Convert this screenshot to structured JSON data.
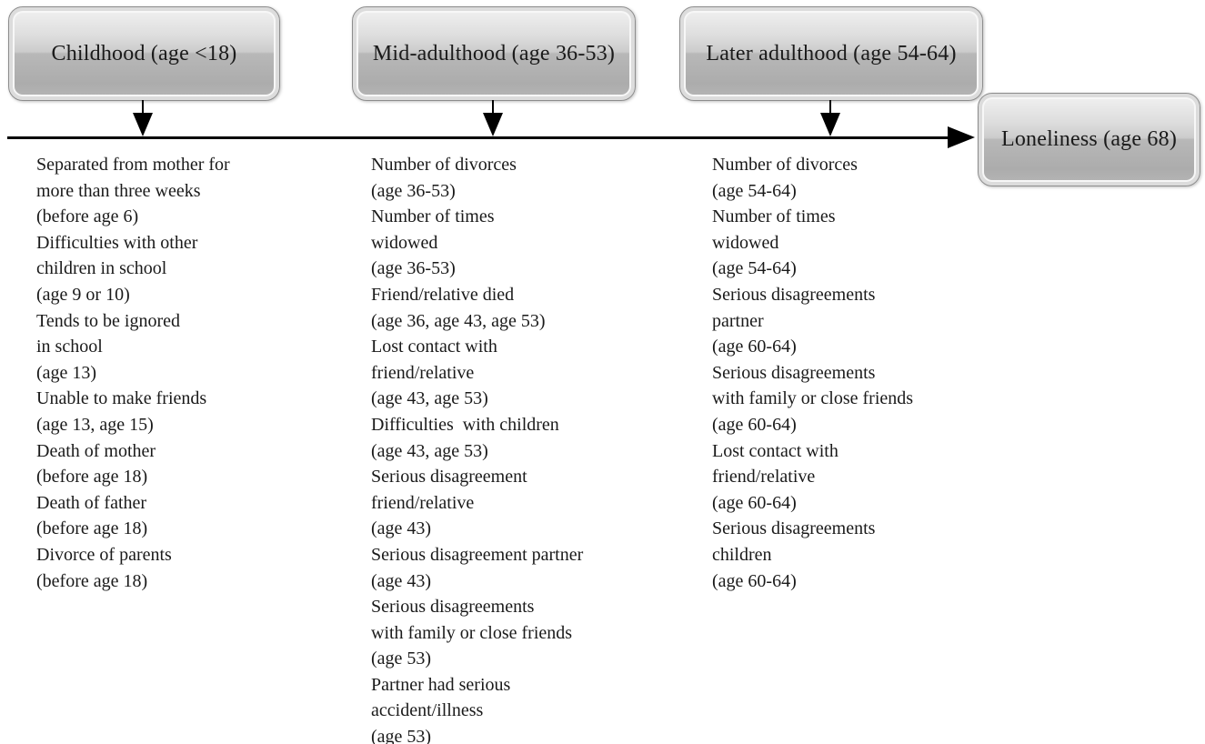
{
  "figure": {
    "stages": [
      {
        "id": "childhood",
        "label": "Childhood (age <18)"
      },
      {
        "id": "mid-adulthood",
        "label": "Mid-adulthood (age 36-53)"
      },
      {
        "id": "later-adulthood",
        "label": "Later adulthood (age 54-64)"
      }
    ],
    "outcome": {
      "label": "Loneliness (age 68)"
    },
    "columns": [
      {
        "stage": "childhood",
        "events": [
          {
            "lines": [
              "Separated from mother for",
              "more than three weeks",
              "(before age 6)"
            ]
          },
          {
            "lines": [
              "Difficulties with other",
              "children in school",
              "(age 9 or 10)"
            ]
          },
          {
            "lines": [
              "Tends to be ignored",
              "in school",
              "(age 13)"
            ]
          },
          {
            "lines": [
              "Unable to make friends",
              "(age 13, age 15)"
            ]
          },
          {
            "lines": [
              "Death of mother",
              "(before age 18)"
            ]
          },
          {
            "lines": [
              "Death of father",
              "(before age 18)"
            ]
          },
          {
            "lines": [
              "Divorce of parents",
              "(before age 18)"
            ]
          }
        ]
      },
      {
        "stage": "mid-adulthood",
        "events": [
          {
            "lines": [
              "Number of divorces",
              "(age 36-53)"
            ]
          },
          {
            "lines": [
              "Number of times",
              "widowed",
              "(age 36-53)"
            ]
          },
          {
            "lines": [
              "Friend/relative died",
              "(age 36, age 43, age 53)"
            ]
          },
          {
            "lines": [
              "Lost contact with",
              "friend/relative",
              "(age 43, age 53)"
            ]
          },
          {
            "lines": [
              "Difficulties  with children",
              "(age 43, age 53)"
            ]
          },
          {
            "lines": [
              "Serious disagreement",
              "friend/relative",
              "(age 43)"
            ]
          },
          {
            "lines": [
              "Serious disagreement partner",
              "(age 43)"
            ]
          },
          {
            "lines": [
              "Serious disagreements",
              "with family or close friends",
              "(age 53)"
            ]
          },
          {
            "lines": [
              "Partner had serious",
              "accident/illness",
              "(age 53)"
            ]
          }
        ]
      },
      {
        "stage": "later-adulthood",
        "events": [
          {
            "lines": [
              "Number of divorces",
              "(age 54-64)"
            ]
          },
          {
            "lines": [
              "Number of times",
              "widowed",
              "(age 54-64)"
            ]
          },
          {
            "lines": [
              "Serious disagreements",
              "partner",
              "(age 60-64)"
            ]
          },
          {
            "lines": [
              "Serious disagreements",
              "with family or close friends",
              "(age 60-64)"
            ]
          },
          {
            "lines": [
              "Lost contact with",
              "friend/relative",
              "(age 60-64)"
            ]
          },
          {
            "lines": [
              "Serious disagreements",
              "children",
              "(age 60-64)"
            ]
          }
        ]
      }
    ]
  },
  "colors": {
    "background": "#ffffff",
    "text": "#1a1a1a",
    "arrow": "#000000",
    "box_border": "#8d8d8d",
    "box_fill_top": "#f2f2f2",
    "box_fill_bottom": "#acacac",
    "box_inner_rim": "#dcdcdc",
    "box_inner_line": "#f7f7f7"
  }
}
